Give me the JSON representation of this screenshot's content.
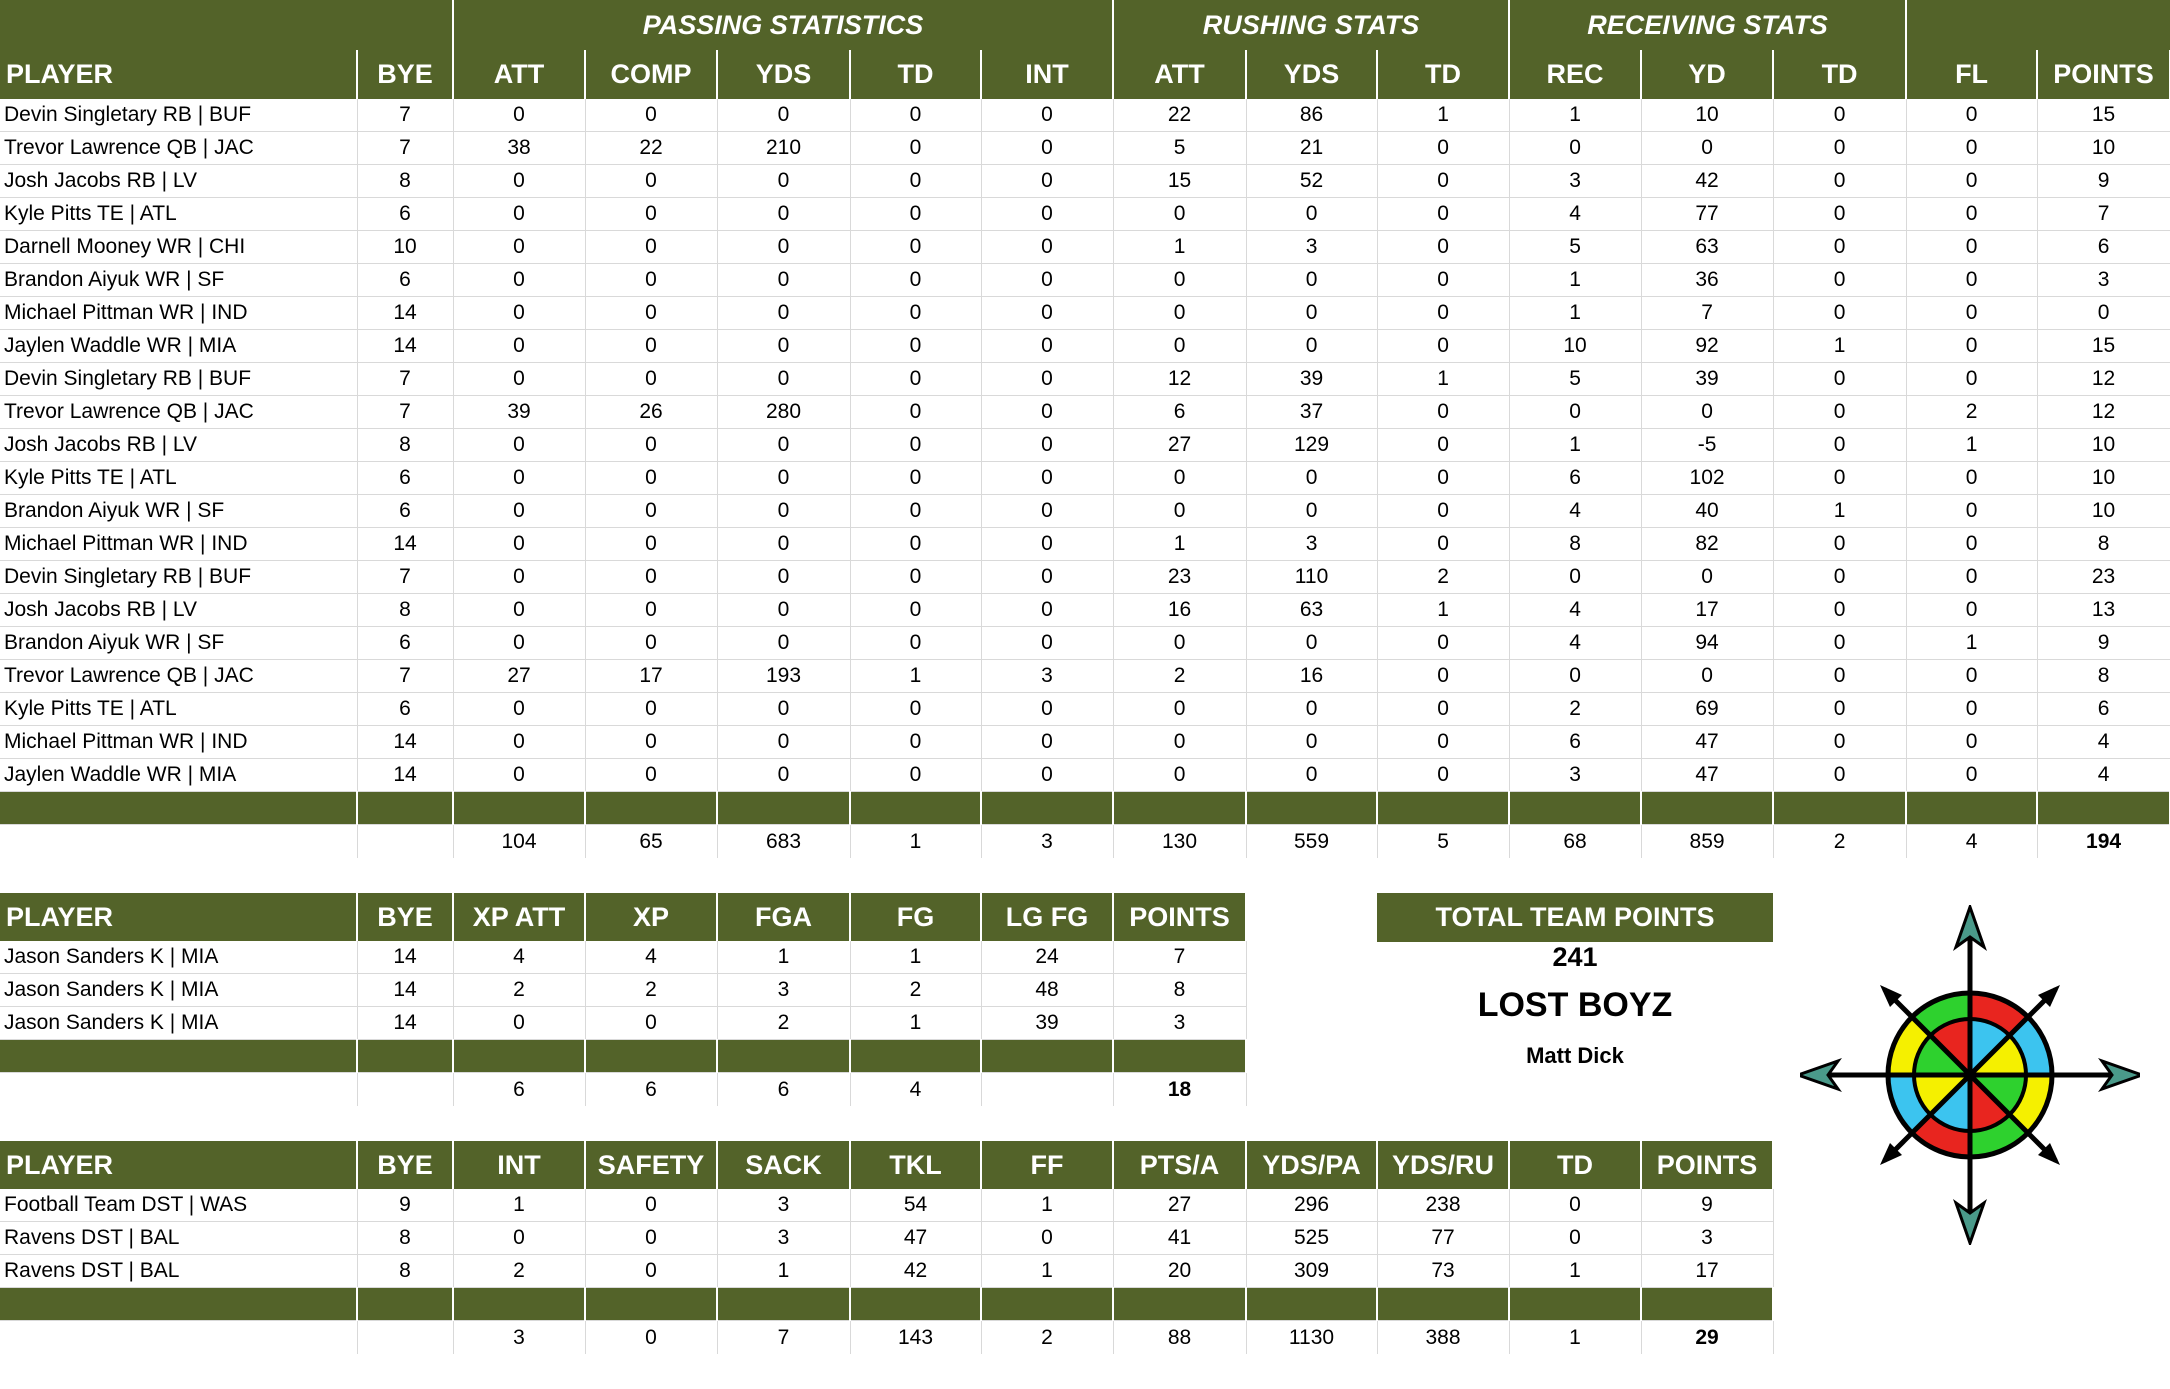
{
  "offense": {
    "groups": {
      "passing": "PASSING STATISTICS",
      "rushing": "RUSHING STATS",
      "receiving": "RECEIVING STATS"
    },
    "columns": [
      "PLAYER",
      "BYE",
      "ATT",
      "COMP",
      "YDS",
      "TD",
      "INT",
      "ATT",
      "YDS",
      "TD",
      "REC",
      "YD",
      "TD",
      "FL",
      "POINTS"
    ],
    "rows": [
      [
        "Devin Singletary RB | BUF",
        "7",
        "0",
        "0",
        "0",
        "0",
        "0",
        "22",
        "86",
        "1",
        "1",
        "10",
        "0",
        "0",
        "15"
      ],
      [
        "Trevor Lawrence QB | JAC",
        "7",
        "38",
        "22",
        "210",
        "0",
        "0",
        "5",
        "21",
        "0",
        "0",
        "0",
        "0",
        "0",
        "10"
      ],
      [
        "Josh Jacobs RB | LV",
        "8",
        "0",
        "0",
        "0",
        "0",
        "0",
        "15",
        "52",
        "0",
        "3",
        "42",
        "0",
        "0",
        "9"
      ],
      [
        "Kyle Pitts TE | ATL",
        "6",
        "0",
        "0",
        "0",
        "0",
        "0",
        "0",
        "0",
        "0",
        "4",
        "77",
        "0",
        "0",
        "7"
      ],
      [
        "Darnell Mooney WR | CHI",
        "10",
        "0",
        "0",
        "0",
        "0",
        "0",
        "1",
        "3",
        "0",
        "5",
        "63",
        "0",
        "0",
        "6"
      ],
      [
        "Brandon Aiyuk WR | SF",
        "6",
        "0",
        "0",
        "0",
        "0",
        "0",
        "0",
        "0",
        "0",
        "1",
        "36",
        "0",
        "0",
        "3"
      ],
      [
        "Michael Pittman WR | IND",
        "14",
        "0",
        "0",
        "0",
        "0",
        "0",
        "0",
        "0",
        "0",
        "1",
        "7",
        "0",
        "0",
        "0"
      ],
      [
        "Jaylen Waddle WR | MIA",
        "14",
        "0",
        "0",
        "0",
        "0",
        "0",
        "0",
        "0",
        "0",
        "10",
        "92",
        "1",
        "0",
        "15"
      ],
      [
        "Devin Singletary RB | BUF",
        "7",
        "0",
        "0",
        "0",
        "0",
        "0",
        "12",
        "39",
        "1",
        "5",
        "39",
        "0",
        "0",
        "12"
      ],
      [
        "Trevor Lawrence QB | JAC",
        "7",
        "39",
        "26",
        "280",
        "0",
        "0",
        "6",
        "37",
        "0",
        "0",
        "0",
        "0",
        "2",
        "12"
      ],
      [
        "Josh Jacobs RB | LV",
        "8",
        "0",
        "0",
        "0",
        "0",
        "0",
        "27",
        "129",
        "0",
        "1",
        "-5",
        "0",
        "1",
        "10"
      ],
      [
        "Kyle Pitts TE | ATL",
        "6",
        "0",
        "0",
        "0",
        "0",
        "0",
        "0",
        "0",
        "0",
        "6",
        "102",
        "0",
        "0",
        "10"
      ],
      [
        "Brandon Aiyuk WR | SF",
        "6",
        "0",
        "0",
        "0",
        "0",
        "0",
        "0",
        "0",
        "0",
        "4",
        "40",
        "1",
        "0",
        "10"
      ],
      [
        "Michael Pittman WR | IND",
        "14",
        "0",
        "0",
        "0",
        "0",
        "0",
        "1",
        "3",
        "0",
        "8",
        "82",
        "0",
        "0",
        "8"
      ],
      [
        "Devin Singletary RB | BUF",
        "7",
        "0",
        "0",
        "0",
        "0",
        "0",
        "23",
        "110",
        "2",
        "0",
        "0",
        "0",
        "0",
        "23"
      ],
      [
        "Josh Jacobs RB | LV",
        "8",
        "0",
        "0",
        "0",
        "0",
        "0",
        "16",
        "63",
        "1",
        "4",
        "17",
        "0",
        "0",
        "13"
      ],
      [
        "Brandon Aiyuk WR | SF",
        "6",
        "0",
        "0",
        "0",
        "0",
        "0",
        "0",
        "0",
        "0",
        "4",
        "94",
        "0",
        "1",
        "9"
      ],
      [
        "Trevor Lawrence QB | JAC",
        "7",
        "27",
        "17",
        "193",
        "1",
        "3",
        "2",
        "16",
        "0",
        "0",
        "0",
        "0",
        "0",
        "8"
      ],
      [
        "Kyle Pitts TE | ATL",
        "6",
        "0",
        "0",
        "0",
        "0",
        "0",
        "0",
        "0",
        "0",
        "2",
        "69",
        "0",
        "0",
        "6"
      ],
      [
        "Michael Pittman WR | IND",
        "14",
        "0",
        "0",
        "0",
        "0",
        "0",
        "0",
        "0",
        "0",
        "6",
        "47",
        "0",
        "0",
        "4"
      ],
      [
        "Jaylen Waddle WR | MIA",
        "14",
        "0",
        "0",
        "0",
        "0",
        "0",
        "0",
        "0",
        "0",
        "3",
        "47",
        "0",
        "0",
        "4"
      ]
    ],
    "totals": [
      "",
      "",
      "104",
      "65",
      "683",
      "1",
      "3",
      "130",
      "559",
      "5",
      "68",
      "859",
      "2",
      "4",
      "194"
    ]
  },
  "kicker": {
    "columns": [
      "PLAYER",
      "BYE",
      "XP ATT",
      "XP",
      "FGA",
      "FG",
      "LG FG",
      "POINTS"
    ],
    "rows": [
      [
        "Jason Sanders K | MIA",
        "14",
        "4",
        "4",
        "1",
        "1",
        "24",
        "7"
      ],
      [
        "Jason Sanders K | MIA",
        "14",
        "2",
        "2",
        "3",
        "2",
        "48",
        "8"
      ],
      [
        "Jason Sanders K | MIA",
        "14",
        "0",
        "0",
        "2",
        "1",
        "39",
        "3"
      ]
    ],
    "totals": [
      "",
      "",
      "6",
      "6",
      "6",
      "4",
      "",
      "18"
    ]
  },
  "defense": {
    "columns": [
      "PLAYER",
      "BYE",
      "INT",
      "SAFETY",
      "SACK",
      "TKL",
      "FF",
      "PTS/A",
      "YDS/PA",
      "YDS/RU",
      "TD",
      "POINTS"
    ],
    "rows": [
      [
        "Football Team DST | WAS",
        "9",
        "1",
        "0",
        "3",
        "54",
        "1",
        "27",
        "296",
        "238",
        "0",
        "9"
      ],
      [
        "Ravens DST | BAL",
        "8",
        "0",
        "0",
        "3",
        "47",
        "0",
        "41",
        "525",
        "77",
        "0",
        "3"
      ],
      [
        "Ravens DST | BAL",
        "8",
        "2",
        "0",
        "1",
        "42",
        "1",
        "20",
        "309",
        "73",
        "1",
        "17"
      ]
    ],
    "totals": [
      "",
      "",
      "3",
      "0",
      "7",
      "143",
      "2",
      "88",
      "1130",
      "388",
      "1",
      "29"
    ]
  },
  "summary": {
    "total_label": "TOTAL TEAM POINTS",
    "total_value": "241",
    "team_name": "LOST BOYZ",
    "owner": "Matt Dick"
  },
  "colors": {
    "header_green": "#536329",
    "grid": "#d9d9d9"
  },
  "logo": {
    "icon": "compass-rose-icon"
  }
}
